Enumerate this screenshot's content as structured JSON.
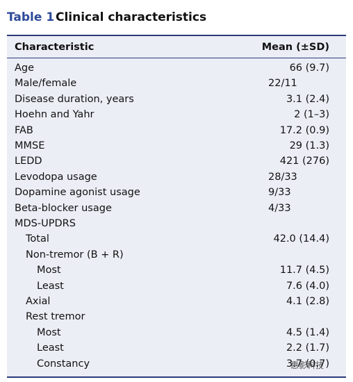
{
  "header": {
    "label": "Table 1",
    "title": "Clinical characteristics"
  },
  "table": {
    "columns": [
      "Characteristic",
      "Mean (±SD)"
    ],
    "rows": [
      {
        "label": "Age",
        "value": "66 (9.7)"
      },
      {
        "label": "Male/female",
        "value": "22/11"
      },
      {
        "label": "Disease duration, years",
        "value": "3.1 (2.4)"
      },
      {
        "label": "Hoehn and Yahr",
        "value": "2 (1–3)"
      },
      {
        "label": "FAB",
        "value": "17.2 (0.9)"
      },
      {
        "label": "MMSE",
        "value": "29 (1.3)"
      },
      {
        "label": "LEDD",
        "value": "421 (276)"
      },
      {
        "label": "Levodopa usage",
        "value": "28/33"
      },
      {
        "label": "Dopamine agonist usage",
        "value": "9/33"
      },
      {
        "label": "Beta-blocker usage",
        "value": "4/33"
      },
      {
        "label": "MDS-UPDRS",
        "children": [
          {
            "label": "Total",
            "value": "42.0 (14.4)"
          },
          {
            "label": "Non-tremor (B + R)",
            "children": [
              {
                "label": "Most",
                "value": "11.7 (4.5)"
              },
              {
                "label": "Least",
                "value": "7.6 (4.0)"
              }
            ]
          },
          {
            "label": "Axial",
            "value": "4.1 (2.8)"
          },
          {
            "label": "Rest tremor",
            "children": [
              {
                "label": "Most",
                "value": "4.5 (1.4)"
              },
              {
                "label": "Least",
                "value": "2.2 (1.7)"
              },
              {
                "label": "Constancy",
                "value": "3.7 (0.7)"
              }
            ]
          }
        ]
      }
    ]
  },
  "watermark": "惠影科技"
}
